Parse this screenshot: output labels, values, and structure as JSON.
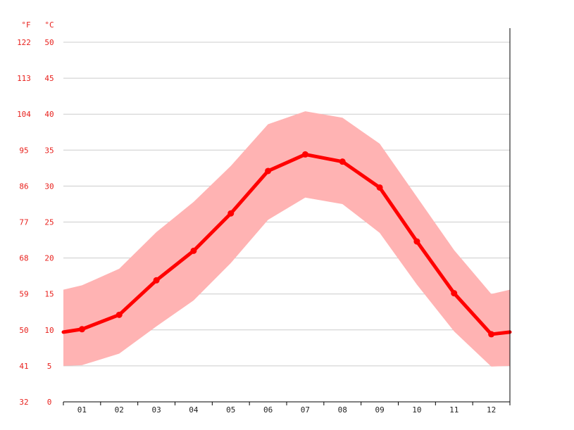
{
  "chart_data": {
    "type": "line",
    "title": "",
    "xlabel": "",
    "ylabel": "",
    "units": {
      "fahrenheit": "°F",
      "celsius": "°C"
    },
    "categories": [
      "01",
      "02",
      "03",
      "04",
      "05",
      "06",
      "07",
      "08",
      "09",
      "10",
      "11",
      "12"
    ],
    "ylim": [
      0,
      50
    ],
    "y_ticks_celsius": [
      0,
      5,
      10,
      15,
      20,
      25,
      30,
      35,
      40,
      45,
      50
    ],
    "y_ticks_fahrenheit": [
      32,
      41,
      50,
      59,
      68,
      77,
      86,
      95,
      104,
      113,
      122
    ],
    "grid": true,
    "series": [
      {
        "role": "average",
        "values": [
          10.1,
          12.1,
          16.9,
          21.0,
          26.2,
          32.1,
          34.4,
          33.4,
          29.8,
          22.3,
          15.1,
          9.4
        ]
      },
      {
        "role": "range_low",
        "values": [
          5.1,
          6.7,
          10.5,
          14.1,
          19.3,
          25.3,
          28.4,
          27.5,
          23.5,
          16.3,
          9.8,
          4.9
        ]
      },
      {
        "role": "range_high",
        "values": [
          16.2,
          18.5,
          23.6,
          27.8,
          32.8,
          38.6,
          40.4,
          39.5,
          35.9,
          28.5,
          21.1,
          15.0
        ]
      }
    ],
    "edge_values": {
      "average": [
        9.7,
        9.7
      ],
      "range_low": [
        5.0,
        5.0
      ],
      "range_high": [
        15.6,
        15.6
      ]
    },
    "colors": {
      "line": "#ff0000",
      "band": "#ffb3b3",
      "grid": "#cccccc",
      "axis": "#000000",
      "labels": "#e8211d"
    }
  }
}
